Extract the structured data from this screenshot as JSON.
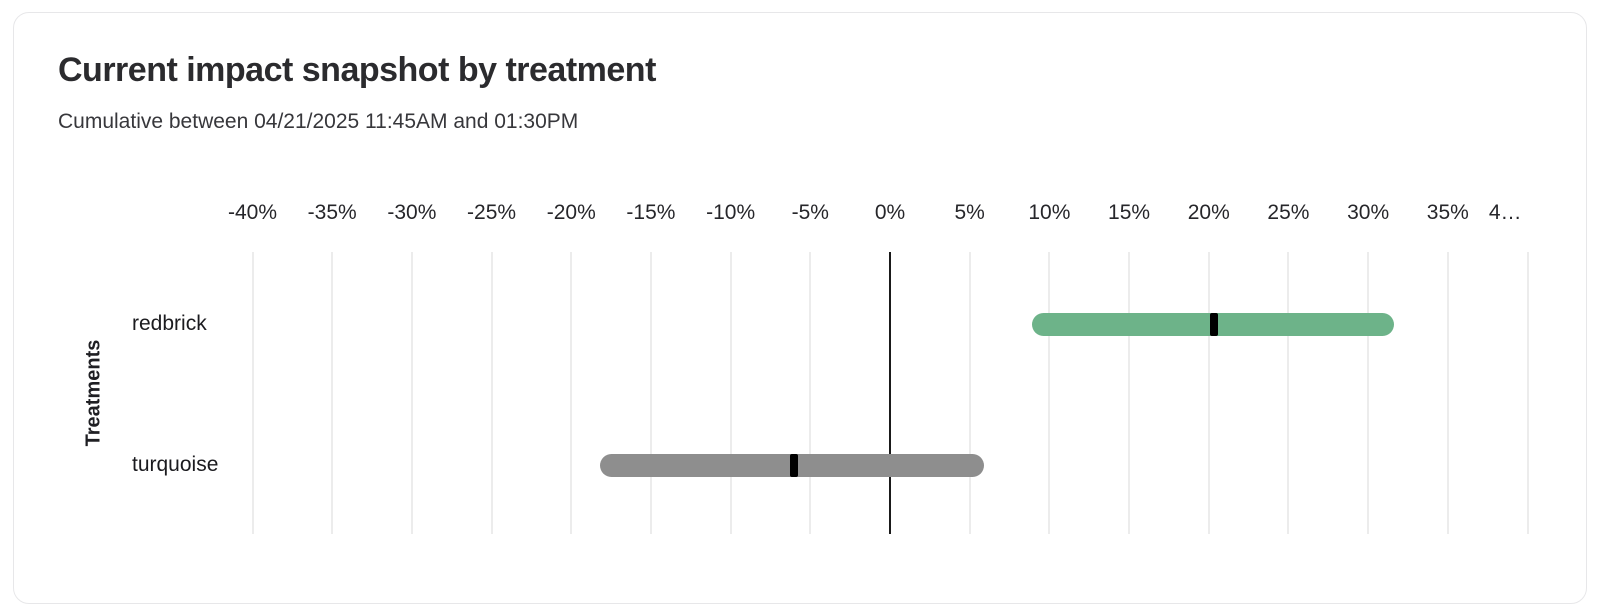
{
  "chart_data": {
    "type": "bar",
    "subtype": "horizontal-range-bar-with-midpoint-marker",
    "title": "Current impact snapshot by treatment",
    "subtitle": "Cumulative between 04/21/2025 11:45AM and 01:30PM",
    "xlabel": "",
    "ylabel": "Treatments",
    "categories": [
      "redbrick",
      "turquoise"
    ],
    "series": [
      {
        "name": "redbrick",
        "value_pct": 20.3,
        "range_pct": [
          8.9,
          31.6
        ],
        "color": "#6DB389"
      },
      {
        "name": "turquoise",
        "value_pct": -6.0,
        "range_pct": [
          -18.2,
          5.9
        ],
        "color": "#8E8E8E"
      }
    ],
    "xlim": [
      -40,
      40
    ],
    "x_tick_unit": "%",
    "x_ticks": [
      {
        "value": -40,
        "label": "-40%"
      },
      {
        "value": -35,
        "label": "-35%"
      },
      {
        "value": -30,
        "label": "-30%"
      },
      {
        "value": -25,
        "label": "-25%"
      },
      {
        "value": -20,
        "label": "-20%"
      },
      {
        "value": -15,
        "label": "-15%"
      },
      {
        "value": -10,
        "label": "-10%"
      },
      {
        "value": -5,
        "label": "-5%"
      },
      {
        "value": 0,
        "label": "0%"
      },
      {
        "value": 5,
        "label": "5%"
      },
      {
        "value": 10,
        "label": "10%"
      },
      {
        "value": 15,
        "label": "15%"
      },
      {
        "value": 20,
        "label": "20%"
      },
      {
        "value": 25,
        "label": "25%"
      },
      {
        "value": 30,
        "label": "30%"
      },
      {
        "value": 35,
        "label": "35%"
      },
      {
        "value": 40,
        "label": "4…",
        "truncated": true
      }
    ],
    "marker_color": "#000000",
    "grid": true,
    "gridline_color": "#ececec",
    "zero_line": true,
    "zero_line_color": "#1a1a1a",
    "legend": "none"
  }
}
